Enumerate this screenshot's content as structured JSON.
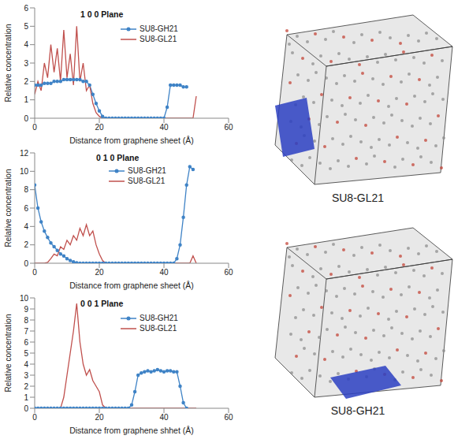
{
  "chart_data": [
    {
      "type": "line",
      "title": "1 0 0 Plane",
      "x_label": "Distance from graphene sheet (Å)",
      "y_label": "Relative concentration",
      "xlim": [
        0,
        60
      ],
      "xticks": [
        0,
        20,
        40,
        60
      ],
      "ylim": [
        0,
        6
      ],
      "yticks": [
        0,
        1,
        2,
        3,
        4,
        5,
        6
      ],
      "grid": false,
      "legend": "upper right",
      "x": [
        0,
        1,
        2,
        3,
        4,
        5,
        6,
        7,
        8,
        9,
        10,
        11,
        12,
        13,
        14,
        15,
        16,
        17,
        18,
        19,
        20,
        21,
        22,
        23,
        24,
        25,
        26,
        27,
        28,
        29,
        30,
        31,
        32,
        33,
        34,
        35,
        36,
        37,
        38,
        39,
        40,
        41,
        42,
        43,
        44,
        45,
        46,
        47,
        48,
        49,
        50
      ],
      "series": [
        {
          "name": "SU8-GH21",
          "color": "#3f83c6",
          "marker": "circle",
          "line_style": "solid",
          "values": [
            1.8,
            1.8,
            1.8,
            1.9,
            1.9,
            1.9,
            2.0,
            2.0,
            2.0,
            2.1,
            2.1,
            2.1,
            2.1,
            2.1,
            2.1,
            2.0,
            2.0,
            1.8,
            1.3,
            0.8,
            0.4,
            0.1,
            0,
            0,
            0,
            0,
            0,
            0,
            0,
            0,
            0,
            0,
            0,
            0,
            0,
            0,
            0,
            0,
            0,
            0,
            0,
            0.6,
            1.8,
            1.8,
            1.8,
            1.8,
            1.7,
            1.7,
            null,
            null,
            null
          ]
        },
        {
          "name": "SU8-GL21",
          "color": "#c0504d",
          "marker": "none",
          "line_style": "solid",
          "values": [
            1.3,
            2.0,
            1.5,
            3.0,
            2.2,
            4.0,
            2.5,
            3.8,
            2.0,
            4.8,
            2.2,
            3.5,
            1.8,
            5.0,
            2.0,
            3.0,
            1.5,
            1.8,
            0.8,
            0.3,
            0.1,
            0,
            0,
            0,
            0,
            0,
            0,
            0,
            0,
            0,
            0,
            0,
            0,
            0,
            0,
            0,
            0,
            0,
            0,
            0,
            0,
            0,
            0,
            0,
            0,
            0,
            0,
            0,
            0,
            0,
            1.2
          ]
        }
      ]
    },
    {
      "type": "line",
      "title": "0 1 0 Plane",
      "x_label": "Distance from graphene sheet (Å)",
      "y_label": "Relative concentration",
      "xlim": [
        0,
        60
      ],
      "xticks": [
        0,
        20,
        40,
        60
      ],
      "ylim": [
        0,
        12
      ],
      "yticks": [
        0,
        2,
        4,
        6,
        8,
        10,
        12
      ],
      "grid": false,
      "legend": "upper right",
      "x": [
        0,
        1,
        2,
        3,
        4,
        5,
        6,
        7,
        8,
        9,
        10,
        11,
        12,
        13,
        14,
        15,
        16,
        17,
        18,
        19,
        20,
        21,
        22,
        23,
        24,
        25,
        26,
        27,
        28,
        29,
        30,
        31,
        32,
        33,
        34,
        35,
        36,
        37,
        38,
        39,
        40,
        41,
        42,
        43,
        44,
        45,
        46,
        47,
        48,
        49,
        50
      ],
      "series": [
        {
          "name": "SU8-GH21",
          "color": "#3f83c6",
          "marker": "circle",
          "line_style": "solid",
          "values": [
            8.5,
            6.0,
            4.5,
            3.5,
            2.8,
            2.2,
            1.8,
            1.4,
            1.0,
            0.8,
            0.5,
            0.3,
            0.15,
            0.05,
            0,
            0,
            0,
            0,
            0,
            0,
            0,
            0,
            0,
            0,
            0,
            0,
            0,
            0,
            0,
            0,
            0,
            0,
            0,
            0,
            0,
            0,
            0,
            0,
            0,
            0,
            0,
            0,
            0,
            0,
            0.5,
            2,
            5,
            8.5,
            10.5,
            10.2,
            null
          ]
        },
        {
          "name": "SU8-GL21",
          "color": "#c0504d",
          "marker": "none",
          "line_style": "solid",
          "values": [
            0,
            0,
            0,
            0,
            0.1,
            0.5,
            1.0,
            0.8,
            1.8,
            1.5,
            2.5,
            2.0,
            3.0,
            2.5,
            3.8,
            3.0,
            4.2,
            3.0,
            3.5,
            2.0,
            1.0,
            0.3,
            0,
            0,
            0,
            0,
            0,
            0,
            0,
            0,
            0,
            0,
            0,
            0,
            0,
            0,
            0,
            0,
            0,
            0,
            0,
            0,
            0,
            0,
            0,
            0,
            0,
            0,
            0,
            0.8,
            0
          ]
        }
      ]
    },
    {
      "type": "line",
      "title": "0 0 1 Plane",
      "x_label": "Distance from graphene shhet (Å)",
      "y_label": "Relative concentration",
      "xlim": [
        0,
        60
      ],
      "xticks": [
        0,
        20,
        40,
        60
      ],
      "ylim": [
        0,
        10
      ],
      "yticks": [
        0,
        1,
        2,
        3,
        4,
        5,
        6,
        7,
        8,
        9,
        10
      ],
      "grid": false,
      "legend": "upper right",
      "x": [
        0,
        1,
        2,
        3,
        4,
        5,
        6,
        7,
        8,
        9,
        10,
        11,
        12,
        13,
        14,
        15,
        16,
        17,
        18,
        19,
        20,
        21,
        22,
        23,
        24,
        25,
        26,
        27,
        28,
        29,
        30,
        31,
        32,
        33,
        34,
        35,
        36,
        37,
        38,
        39,
        40,
        41,
        42,
        43,
        44,
        45,
        46,
        47,
        48,
        49,
        50
      ],
      "series": [
        {
          "name": "SU8-GH21",
          "color": "#3f83c6",
          "marker": "circle",
          "line_style": "solid",
          "values": [
            0,
            0,
            0,
            0,
            0,
            0,
            0,
            0,
            0,
            0,
            0,
            0,
            0,
            0,
            0,
            0,
            0,
            0,
            0,
            0,
            0,
            0,
            0,
            0,
            0,
            0,
            0,
            0,
            0,
            0,
            0.3,
            1.5,
            3.0,
            3.2,
            3.3,
            3.4,
            3.3,
            3.4,
            3.5,
            3.4,
            3.3,
            3.4,
            3.4,
            3.3,
            3.3,
            2.0,
            0.5,
            0,
            null,
            null,
            null
          ]
        },
        {
          "name": "SU8-GL21",
          "color": "#c0504d",
          "marker": "none",
          "line_style": "solid",
          "values": [
            0,
            0,
            0,
            0,
            0,
            0,
            0,
            0,
            0,
            1,
            3,
            5,
            7,
            9.5,
            6,
            4,
            3,
            3.5,
            2.5,
            2,
            1.5,
            0.3,
            0,
            0,
            0,
            0,
            0,
            0,
            0,
            0,
            0,
            0,
            0,
            0,
            0,
            0,
            0,
            0,
            0,
            0,
            0,
            0,
            0,
            0,
            0,
            0,
            0,
            0,
            0,
            0,
            0
          ]
        }
      ]
    }
  ],
  "images": [
    {
      "caption": "SU8-GL21"
    },
    {
      "caption": "SU8-GH21"
    }
  ]
}
